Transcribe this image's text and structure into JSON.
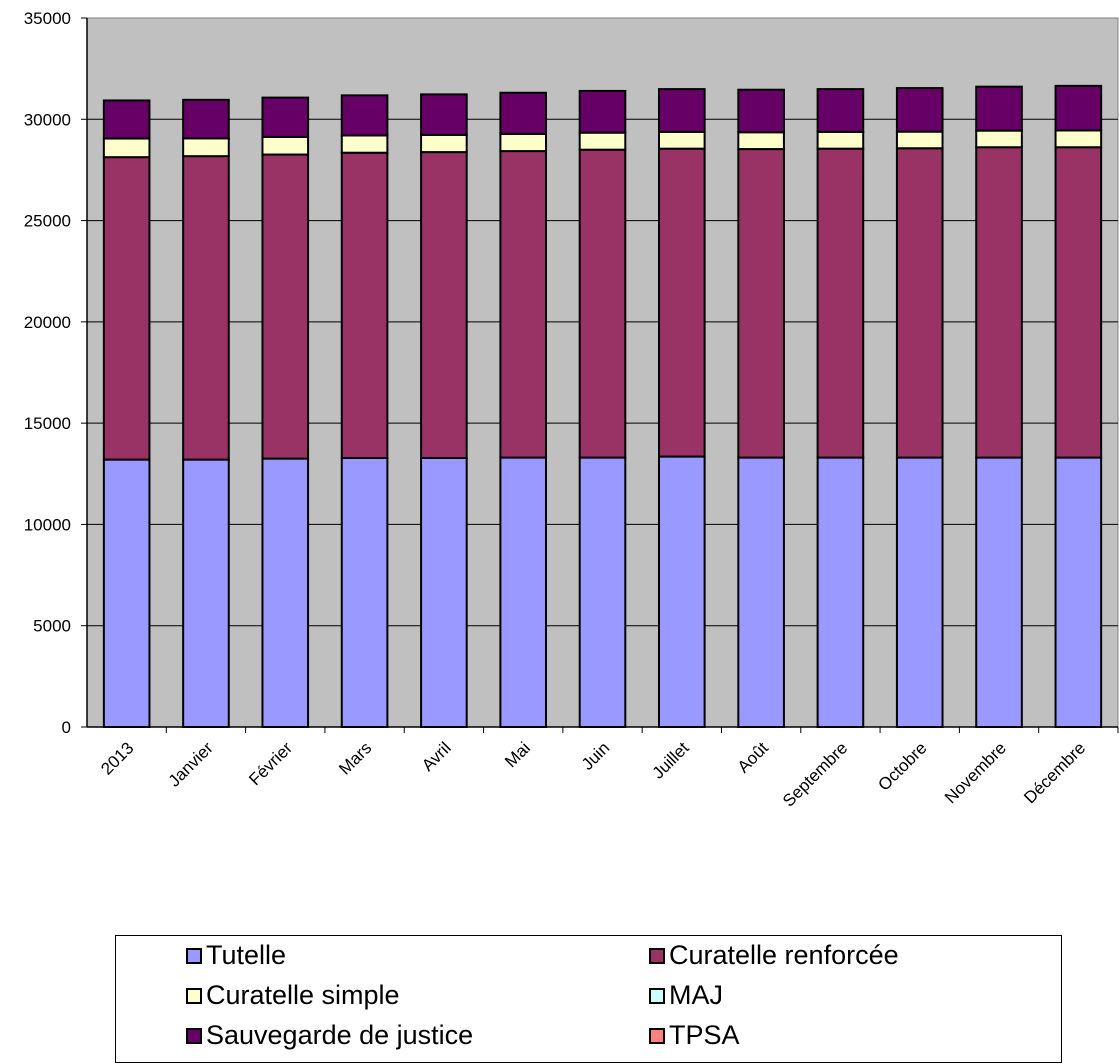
{
  "chart_data": {
    "type": "bar",
    "stacked": true,
    "categories": [
      "2013",
      "Janvier",
      "Février",
      "Mars",
      "Avril",
      "Mai",
      "Juin",
      "Juillet",
      "Août",
      "Septembre",
      "Octobre",
      "Novembre",
      "Décembre"
    ],
    "series": [
      {
        "name": "Tutelle",
        "color": "#9999ff",
        "values": [
          13200,
          13200,
          13250,
          13280,
          13280,
          13300,
          13300,
          13350,
          13300,
          13300,
          13300,
          13300,
          13300
        ]
      },
      {
        "name": "Curatelle renforcée",
        "color": "#993366",
        "values": [
          14930,
          14980,
          15010,
          15070,
          15100,
          15130,
          15200,
          15200,
          15230,
          15250,
          15270,
          15320,
          15320
        ]
      },
      {
        "name": "Curatelle simple",
        "color": "#ffffcc",
        "values": [
          920,
          880,
          870,
          850,
          850,
          850,
          840,
          830,
          830,
          830,
          820,
          820,
          830
        ]
      },
      {
        "name": "MAJ",
        "color": "#ccffff",
        "values": [
          0,
          0,
          0,
          0,
          0,
          0,
          0,
          0,
          0,
          0,
          0,
          0,
          0
        ]
      },
      {
        "name": "Sauvegarde de justice",
        "color": "#660066",
        "values": [
          1880,
          1900,
          1940,
          1980,
          2000,
          2030,
          2060,
          2110,
          2100,
          2110,
          2150,
          2170,
          2200
        ]
      },
      {
        "name": "TPSA",
        "color": "#ff8080",
        "values": [
          0,
          0,
          0,
          0,
          0,
          0,
          0,
          0,
          0,
          0,
          0,
          0,
          0
        ]
      }
    ],
    "ylim": [
      0,
      35000
    ],
    "yticks": [
      "0",
      "5000",
      "10000",
      "15000",
      "20000",
      "25000",
      "30000",
      "35000"
    ],
    "grid": true,
    "plot_background": "#c0c0c0",
    "legend_position": "bottom"
  }
}
